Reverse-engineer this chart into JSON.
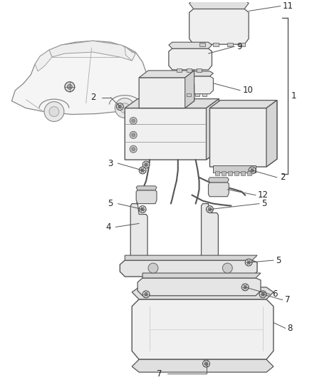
{
  "background_color": "#ffffff",
  "line_color": "#444444",
  "label_color": "#222222",
  "figsize": [
    4.38,
    5.33
  ],
  "dpi": 100
}
